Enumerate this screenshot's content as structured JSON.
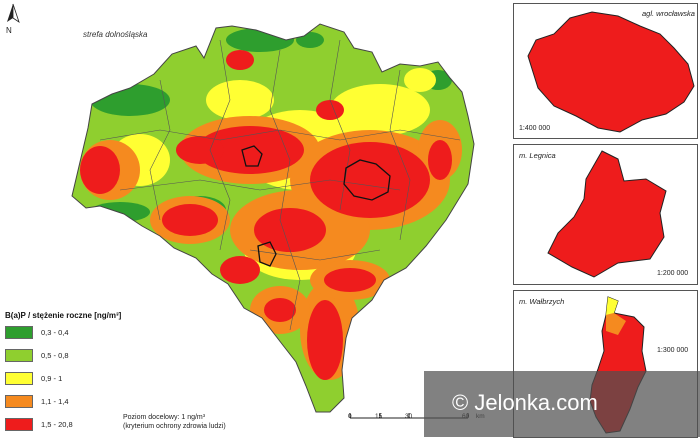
{
  "zone_label": "strefa dolnośląska",
  "north_label": "N",
  "legend": {
    "title": "B(a)P / stężenie roczne [ng/m³]",
    "classes": [
      {
        "label": "0,3 - 0,4",
        "color": "#2e9e2e"
      },
      {
        "label": "0,5 - 0,8",
        "color": "#8fcf2f"
      },
      {
        "label": "0,9 - 1",
        "color": "#ffff33"
      },
      {
        "label": "1,1 - 1,4",
        "color": "#f58a1f"
      },
      {
        "label": "1,5 - 20,8",
        "color": "#ee1c1c"
      }
    ]
  },
  "target_note": {
    "line1": "Poziom docelowy: 1 ng/m³",
    "line2": "(kryterium ochrony zdrowia ludzi)"
  },
  "scale_bar": {
    "ticks": [
      "0",
      "15",
      "30",
      "60"
    ],
    "unit": "km"
  },
  "insets": [
    {
      "title": "agl. wrocławska",
      "scale": "1:400 000"
    },
    {
      "title": "m. Legnica",
      "scale": "1:200 000"
    },
    {
      "title": "m. Wałbrzych",
      "scale": "1:300 000"
    }
  ],
  "watermark": {
    "text": "© Jelonka.com"
  }
}
